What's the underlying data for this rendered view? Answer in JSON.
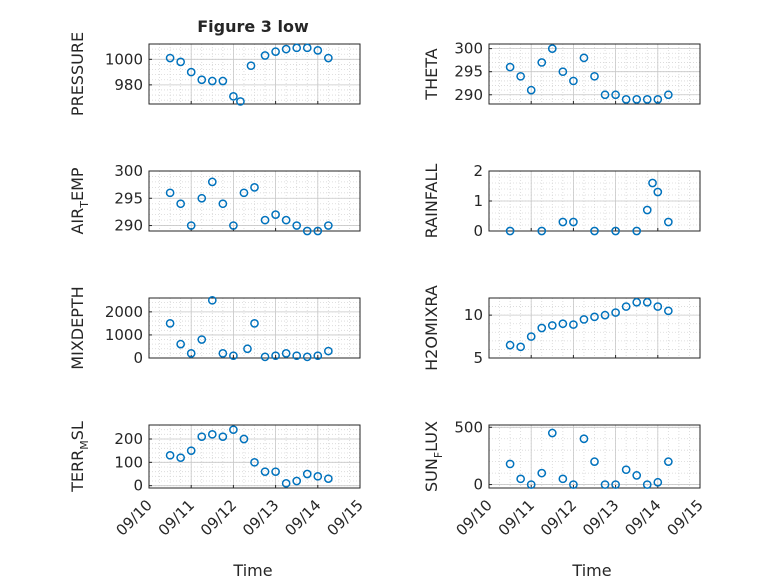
{
  "figure_title": "Figure 3 low",
  "x_ticks": [
    "09/10",
    "09/11",
    "09/12",
    "09/13",
    "09/14",
    "09/15"
  ],
  "x_label": "Time",
  "marker_color": "#0072bd",
  "grid": true,
  "chart_data": [
    {
      "type": "scatter",
      "title": "Figure 3 low",
      "ylabel": "PRESSURE",
      "ylim": [
        965,
        1012
      ],
      "yticks": [
        "980",
        "1000"
      ],
      "ytick_values": [
        980,
        1000
      ],
      "x": [
        "09/10 12:00",
        "09/10 18:00",
        "09/11 00:00",
        "09/11 06:00",
        "09/11 12:00",
        "09/11 18:00",
        "09/12 00:00",
        "09/12 04:00",
        "09/12 10:00",
        "09/12 18:00",
        "09/13 00:00",
        "09/13 06:00",
        "09/13 12:00",
        "09/13 18:00",
        "09/14 00:00",
        "09/14 06:00"
      ],
      "y": [
        1001,
        998,
        990,
        984,
        983,
        983,
        971,
        967,
        995,
        1003,
        1006,
        1008,
        1009,
        1009,
        1007,
        1001
      ]
    },
    {
      "type": "scatter",
      "title": "",
      "ylabel": "THETA",
      "ylim": [
        288,
        301
      ],
      "yticks": [
        "290",
        "295",
        "300"
      ],
      "ytick_values": [
        290,
        295,
        300
      ],
      "x": [
        "09/10 12:00",
        "09/10 18:00",
        "09/11 00:00",
        "09/11 06:00",
        "09/11 12:00",
        "09/11 18:00",
        "09/12 00:00",
        "09/12 06:00",
        "09/12 12:00",
        "09/12 18:00",
        "09/13 00:00",
        "09/13 06:00",
        "09/13 12:00",
        "09/13 18:00",
        "09/14 00:00",
        "09/14 06:00"
      ],
      "y": [
        296,
        294,
        291,
        297,
        300,
        295,
        293,
        298,
        294,
        290,
        290,
        289,
        289,
        289,
        289,
        290
      ]
    },
    {
      "type": "scatter",
      "title": "",
      "ylabel": "AIR_TEMP",
      "ylim": [
        289,
        300
      ],
      "yticks": [
        "290",
        "295",
        "300"
      ],
      "ytick_values": [
        290,
        295,
        300
      ],
      "x": [
        "09/10 12:00",
        "09/10 18:00",
        "09/11 00:00",
        "09/11 06:00",
        "09/11 12:00",
        "09/11 18:00",
        "09/12 00:00",
        "09/12 06:00",
        "09/12 12:00",
        "09/12 18:00",
        "09/13 00:00",
        "09/13 06:00",
        "09/13 12:00",
        "09/13 18:00",
        "09/14 00:00",
        "09/14 06:00"
      ],
      "y": [
        296,
        294,
        290,
        295,
        298,
        294,
        290,
        296,
        297,
        291,
        292,
        291,
        290,
        289,
        289,
        290
      ]
    },
    {
      "type": "scatter",
      "title": "",
      "ylabel": "RAINFALL",
      "ylim": [
        0,
        2
      ],
      "yticks": [
        "0",
        "1",
        "2"
      ],
      "ytick_values": [
        0,
        1,
        2
      ],
      "x": [
        "09/10 12:00",
        "09/11 06:00",
        "09/11 18:00",
        "09/12 00:00",
        "09/12 12:00",
        "09/13 00:00",
        "09/13 12:00",
        "09/13 18:00",
        "09/13 21:00",
        "09/14 00:00",
        "09/14 06:00"
      ],
      "y": [
        0,
        0,
        0.3,
        0.3,
        0,
        0,
        0,
        0.7,
        1.6,
        1.3,
        0.3
      ]
    },
    {
      "type": "scatter",
      "title": "",
      "ylabel": "MIXDEPTH",
      "ylim": [
        0,
        2600
      ],
      "yticks": [
        "0",
        "1000",
        "2000"
      ],
      "ytick_values": [
        0,
        1000,
        2000
      ],
      "x": [
        "09/10 12:00",
        "09/10 18:00",
        "09/11 00:00",
        "09/11 06:00",
        "09/11 12:00",
        "09/11 18:00",
        "09/12 00:00",
        "09/12 08:00",
        "09/12 12:00",
        "09/12 18:00",
        "09/13 00:00",
        "09/13 06:00",
        "09/13 12:00",
        "09/13 18:00",
        "09/14 00:00",
        "09/14 06:00"
      ],
      "y": [
        1500,
        600,
        200,
        800,
        2500,
        200,
        100,
        400,
        1500,
        50,
        100,
        200,
        100,
        50,
        100,
        300
      ]
    },
    {
      "type": "scatter",
      "title": "",
      "ylabel": "H2OMIXRA",
      "ylim": [
        5,
        12
      ],
      "yticks": [
        "5",
        "10"
      ],
      "ytick_values": [
        5,
        10
      ],
      "x": [
        "09/10 12:00",
        "09/10 18:00",
        "09/11 00:00",
        "09/11 06:00",
        "09/11 12:00",
        "09/11 18:00",
        "09/12 00:00",
        "09/12 06:00",
        "09/12 12:00",
        "09/12 18:00",
        "09/13 00:00",
        "09/13 06:00",
        "09/13 12:00",
        "09/13 18:00",
        "09/14 00:00",
        "09/14 06:00"
      ],
      "y": [
        6.5,
        6.3,
        7.5,
        8.5,
        8.8,
        9.0,
        8.9,
        9.5,
        9.8,
        10.0,
        10.3,
        11.0,
        11.5,
        11.5,
        11.0,
        10.5
      ]
    },
    {
      "type": "scatter",
      "title": "",
      "ylabel": "TERR_MSL",
      "ylim": [
        -10,
        260
      ],
      "yticks": [
        "0",
        "100",
        "200"
      ],
      "ytick_values": [
        0,
        100,
        200
      ],
      "x": [
        "09/10 12:00",
        "09/10 18:00",
        "09/11 00:00",
        "09/11 06:00",
        "09/11 12:00",
        "09/11 18:00",
        "09/12 00:00",
        "09/12 06:00",
        "09/12 12:00",
        "09/12 18:00",
        "09/13 00:00",
        "09/13 06:00",
        "09/13 12:00",
        "09/13 18:00",
        "09/14 00:00",
        "09/14 06:00"
      ],
      "y": [
        130,
        120,
        150,
        210,
        220,
        210,
        240,
        200,
        100,
        60,
        60,
        10,
        20,
        50,
        40,
        30
      ]
    },
    {
      "type": "scatter",
      "title": "",
      "ylabel": "SUN_FLUX",
      "ylim": [
        -30,
        520
      ],
      "yticks": [
        "0",
        "500"
      ],
      "ytick_values": [
        0,
        500
      ],
      "x": [
        "09/10 12:00",
        "09/10 18:00",
        "09/11 00:00",
        "09/11 06:00",
        "09/11 12:00",
        "09/11 18:00",
        "09/12 00:00",
        "09/12 06:00",
        "09/12 12:00",
        "09/12 18:00",
        "09/13 00:00",
        "09/13 06:00",
        "09/13 12:00",
        "09/13 18:00",
        "09/14 00:00",
        "09/14 06:00"
      ],
      "y": [
        180,
        50,
        0,
        100,
        450,
        50,
        0,
        400,
        200,
        0,
        0,
        130,
        80,
        0,
        20,
        200
      ]
    }
  ]
}
